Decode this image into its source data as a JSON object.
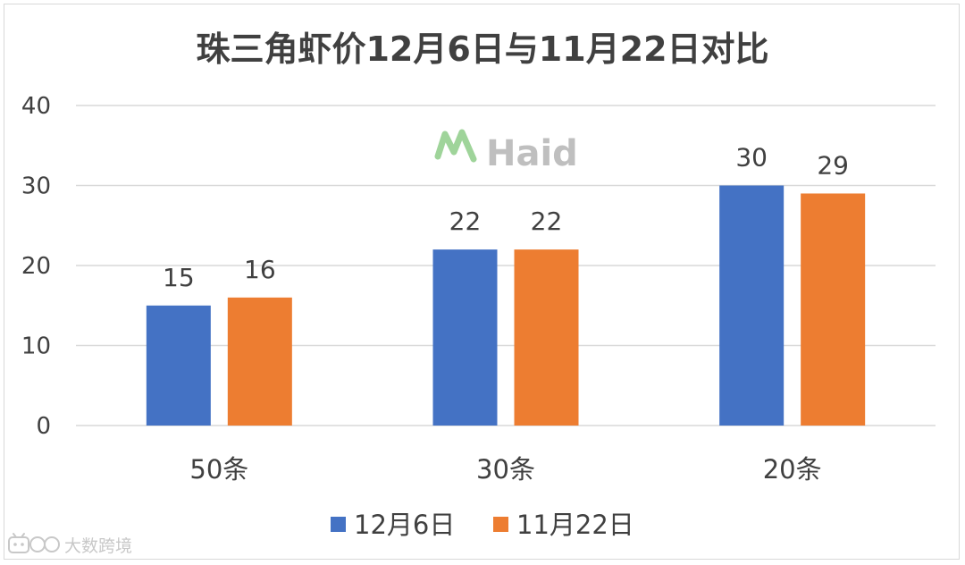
{
  "chart_data": {
    "type": "bar",
    "title": "珠三角虾价12月6日与11月22日对比",
    "categories": [
      "50条",
      "30条",
      "20条"
    ],
    "series": [
      {
        "name": "12月6日",
        "color": "#4472c4",
        "values": [
          15,
          22,
          30
        ]
      },
      {
        "name": "11月22日",
        "color": "#ed7d31",
        "values": [
          16,
          22,
          29
        ]
      }
    ],
    "ylim": [
      0,
      40
    ],
    "yticks": [
      "0",
      "10",
      "20",
      "30",
      "40"
    ],
    "grid": true,
    "legend": "bottom",
    "data_labels": true
  },
  "logo": {
    "text": "Haid",
    "icon": "haid-logo-icon"
  },
  "watermark": {
    "text": "大数跨境",
    "icon": "bilibili-icon"
  }
}
